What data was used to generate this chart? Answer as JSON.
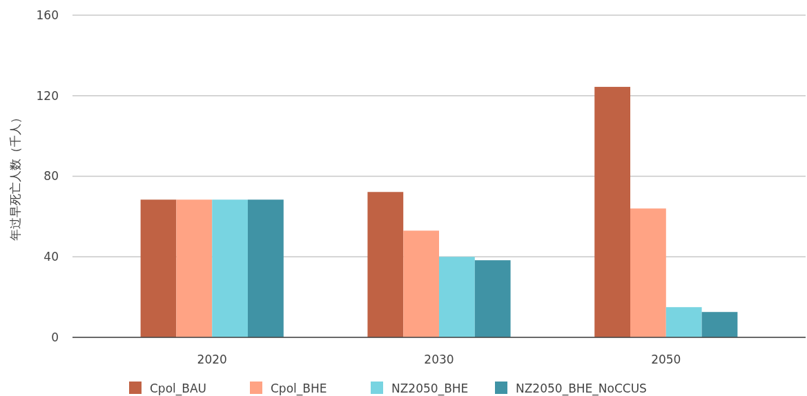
{
  "chart_data": {
    "type": "bar",
    "ylabel": "年过早死亡人数（千人）",
    "categories": [
      "2020",
      "2030",
      "2050"
    ],
    "series": [
      {
        "name": "Cpol_BAU",
        "color": "#c06244",
        "values": [
          68.4,
          72.2,
          124.4
        ]
      },
      {
        "name": "Cpol_BHE",
        "color": "#ffa384",
        "values": [
          68.4,
          53.0,
          64.0
        ]
      },
      {
        "name": "NZ2050_BHE",
        "color": "#78d4e1",
        "values": [
          68.4,
          40.0,
          15.0
        ]
      },
      {
        "name": "NZ2050_BHE_NoCCUS",
        "color": "#4093a5",
        "values": [
          68.4,
          38.3,
          12.6
        ]
      }
    ],
    "ylim": [
      0,
      160
    ],
    "yticks": [
      0,
      40,
      80,
      120,
      160
    ],
    "grid": "y",
    "legend": "bottom"
  }
}
